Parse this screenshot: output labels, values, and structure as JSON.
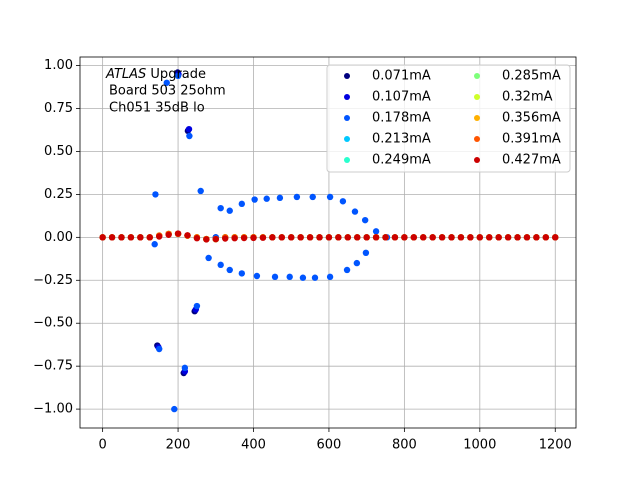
{
  "chart_data": {
    "type": "scatter",
    "annotation": {
      "experiment": "ATLAS",
      "text": "Upgrade",
      "lines": [
        "Board 503 25ohm",
        "Ch051 35dB lo"
      ]
    },
    "xlim": [
      -60,
      1255
    ],
    "ylim": [
      -1.11,
      1.05
    ],
    "xticks": [
      0,
      200,
      400,
      600,
      800,
      1000,
      1200
    ],
    "yticks": [
      {
        "value": -1,
        "label": "−1.00"
      },
      {
        "value": -0.75,
        "label": "−0.75"
      },
      {
        "value": -0.5,
        "label": "−0.50"
      },
      {
        "value": -0.25,
        "label": "−0.25"
      },
      {
        "value": 0,
        "label": "0.00"
      },
      {
        "value": 0.25,
        "label": "0.25"
      },
      {
        "value": 0.5,
        "label": "0.50"
      },
      {
        "value": 0.75,
        "label": "0.75"
      },
      {
        "value": 1,
        "label": "1.00"
      }
    ],
    "grid": true,
    "legend": "upper right",
    "x": [
      0,
      25,
      50,
      75,
      100,
      125,
      150,
      175,
      200,
      225,
      250,
      275,
      300,
      325,
      350,
      375,
      400,
      425,
      450,
      475,
      500,
      525,
      550,
      575,
      600,
      625,
      650,
      675,
      700,
      725,
      750,
      775,
      800,
      825,
      850,
      875,
      900,
      925,
      950,
      975,
      1000,
      1025,
      1050,
      1075,
      1100,
      1125,
      1150,
      1175,
      1200
    ],
    "series": [
      {
        "name": "0.071mA",
        "color": "#00007f",
        "x": [
          0,
          50,
          100,
          145,
          199,
          215,
          226,
          244,
          300,
          350,
          400,
          450,
          500,
          550,
          600,
          650,
          700,
          750,
          800,
          850,
          900,
          950,
          1000,
          1050,
          1100,
          1150,
          1200
        ],
        "values": [
          0,
          0,
          0,
          -0.63,
          0.96,
          -0.79,
          0.62,
          -0.43,
          0,
          0,
          0,
          0,
          0,
          0,
          0,
          0,
          0,
          0,
          0,
          0,
          0,
          0,
          0,
          0,
          0,
          0,
          0
        ]
      },
      {
        "name": "0.107mA",
        "color": "#0000e0",
        "x": [
          25,
          75,
          125,
          148,
          201,
          218,
          229,
          247,
          325,
          375,
          425,
          475,
          525,
          575,
          625,
          675,
          725,
          775,
          825,
          875,
          925,
          975,
          1025,
          1075,
          1125,
          1175
        ],
        "values": [
          0,
          0,
          0,
          -0.64,
          0.95,
          -0.78,
          0.63,
          -0.42,
          0,
          0,
          0,
          0,
          0,
          0,
          0,
          0,
          0,
          0,
          0,
          0,
          0,
          0,
          0,
          0,
          0,
          0
        ]
      },
      {
        "name": "0.178mA",
        "color": "#0055ff",
        "x": [
          0,
          50,
          100,
          138,
          140,
          150,
          170,
          190,
          200,
          218,
          230,
          250,
          260,
          281,
          300,
          313,
          313,
          337,
          337,
          369,
          369,
          400,
          403,
          409,
          435,
          457,
          470,
          496,
          500,
          515,
          531,
          557,
          563,
          600,
          603,
          603,
          637,
          648,
          669,
          674,
          696,
          698,
          700,
          725,
          754,
          800,
          850,
          900,
          950,
          1000,
          1050,
          1100,
          1150,
          1200
        ],
        "values": [
          0,
          0,
          0,
          -0.04,
          0.25,
          -0.65,
          0.9,
          -1.0,
          0.94,
          -0.76,
          0.59,
          -0.4,
          0.27,
          -0.12,
          0,
          0.17,
          -0.16,
          0.155,
          -0.19,
          0.195,
          -0.21,
          0,
          0.22,
          -0.225,
          0.225,
          -0.23,
          0.23,
          -0.23,
          0,
          0.235,
          -0.235,
          0.235,
          -0.235,
          0,
          0.235,
          -0.23,
          0.21,
          -0.19,
          0.15,
          -0.15,
          0.1,
          -0.09,
          0,
          0.035,
          0,
          0,
          0,
          0,
          0,
          0,
          0,
          0,
          0,
          0
        ]
      },
      {
        "name": "0.213mA",
        "color": "#00c8ff",
        "values": [
          0,
          0,
          0,
          0,
          0,
          0,
          0.01,
          0.02,
          0.02,
          0.01,
          0,
          -0.01,
          -0.01,
          0,
          0,
          0,
          0,
          0,
          0,
          0,
          0,
          0,
          0,
          0,
          0,
          0,
          0,
          0,
          0,
          0,
          0,
          0,
          0,
          0,
          0,
          0,
          0,
          0,
          0,
          0,
          0,
          0,
          0,
          0,
          0,
          0,
          0,
          0,
          0
        ]
      },
      {
        "name": "0.249mA",
        "color": "#29ffce",
        "values": [
          0,
          0,
          0,
          0,
          0,
          0,
          0.01,
          0.02,
          0.02,
          0.01,
          0,
          -0.01,
          -0.01,
          0,
          0,
          0,
          0,
          0,
          0,
          0,
          0,
          0,
          0,
          0,
          0,
          0,
          0,
          0,
          0,
          0,
          0,
          0,
          0,
          0,
          0,
          0,
          0,
          0,
          0,
          0,
          0,
          0,
          0,
          0,
          0,
          0,
          0,
          0,
          0
        ]
      },
      {
        "name": "0.285mA",
        "color": "#7dff7a",
        "values": [
          0,
          0,
          0,
          0,
          0,
          0,
          0.01,
          0.02,
          0.02,
          0.01,
          0,
          -0.01,
          -0.01,
          0,
          0,
          0,
          0,
          0,
          0,
          0,
          0,
          0,
          0,
          0,
          0,
          0,
          0,
          0,
          0,
          0,
          0,
          0,
          0,
          0,
          0,
          0,
          0,
          0,
          0,
          0,
          0,
          0,
          0,
          0,
          0,
          0,
          0,
          0,
          0
        ]
      },
      {
        "name": "0.32mA",
        "color": "#ceff29",
        "values": [
          0,
          0,
          0,
          0,
          0,
          0,
          0.01,
          0.02,
          0.02,
          0.01,
          0,
          -0.01,
          -0.01,
          0,
          0,
          0,
          0,
          0,
          0,
          0,
          0,
          0,
          0,
          0,
          0,
          0,
          0,
          0,
          0,
          0,
          0,
          0,
          0,
          0,
          0,
          0,
          0,
          0,
          0,
          0,
          0,
          0,
          0,
          0,
          0,
          0,
          0,
          0,
          0
        ]
      },
      {
        "name": "0.356mA",
        "color": "#ffb000",
        "values": [
          0,
          0,
          0,
          0,
          0,
          0,
          0.01,
          0.02,
          0.02,
          0.01,
          0,
          -0.01,
          -0.01,
          0,
          0,
          0,
          0,
          0,
          0,
          0,
          0,
          0,
          0,
          0,
          0,
          0,
          0,
          0,
          0,
          0,
          0,
          0,
          0,
          0,
          0,
          0,
          0,
          0,
          0,
          0,
          0,
          0,
          0,
          0,
          0,
          0,
          0,
          0,
          0
        ]
      },
      {
        "name": "0.391mA",
        "color": "#ff5500",
        "values": [
          0,
          0,
          0,
          0,
          0,
          0,
          0.01,
          0.02,
          0.02,
          0.01,
          0,
          -0.01,
          -0.01,
          0,
          0,
          0,
          0,
          0,
          0,
          0,
          0,
          0,
          0,
          0,
          0,
          0,
          0,
          0,
          0,
          0,
          0,
          0,
          0,
          0,
          0,
          0,
          0,
          0,
          0,
          0,
          0,
          0,
          0,
          0,
          0,
          0,
          0,
          0,
          0
        ]
      },
      {
        "name": "0.427mA",
        "color": "#cc0000",
        "values": [
          0,
          0,
          0,
          0,
          0,
          0,
          0.005,
          0.015,
          0.022,
          0.012,
          -0.005,
          -0.012,
          -0.01,
          -0.007,
          -0.005,
          -0.004,
          -0.003,
          -0.002,
          0,
          0,
          0,
          0,
          0,
          0,
          0,
          0,
          0,
          0,
          0,
          0,
          0,
          0,
          0,
          0,
          0,
          0,
          0,
          0,
          0,
          0,
          0,
          0,
          0,
          0,
          0,
          0,
          0,
          0,
          0
        ]
      }
    ]
  }
}
